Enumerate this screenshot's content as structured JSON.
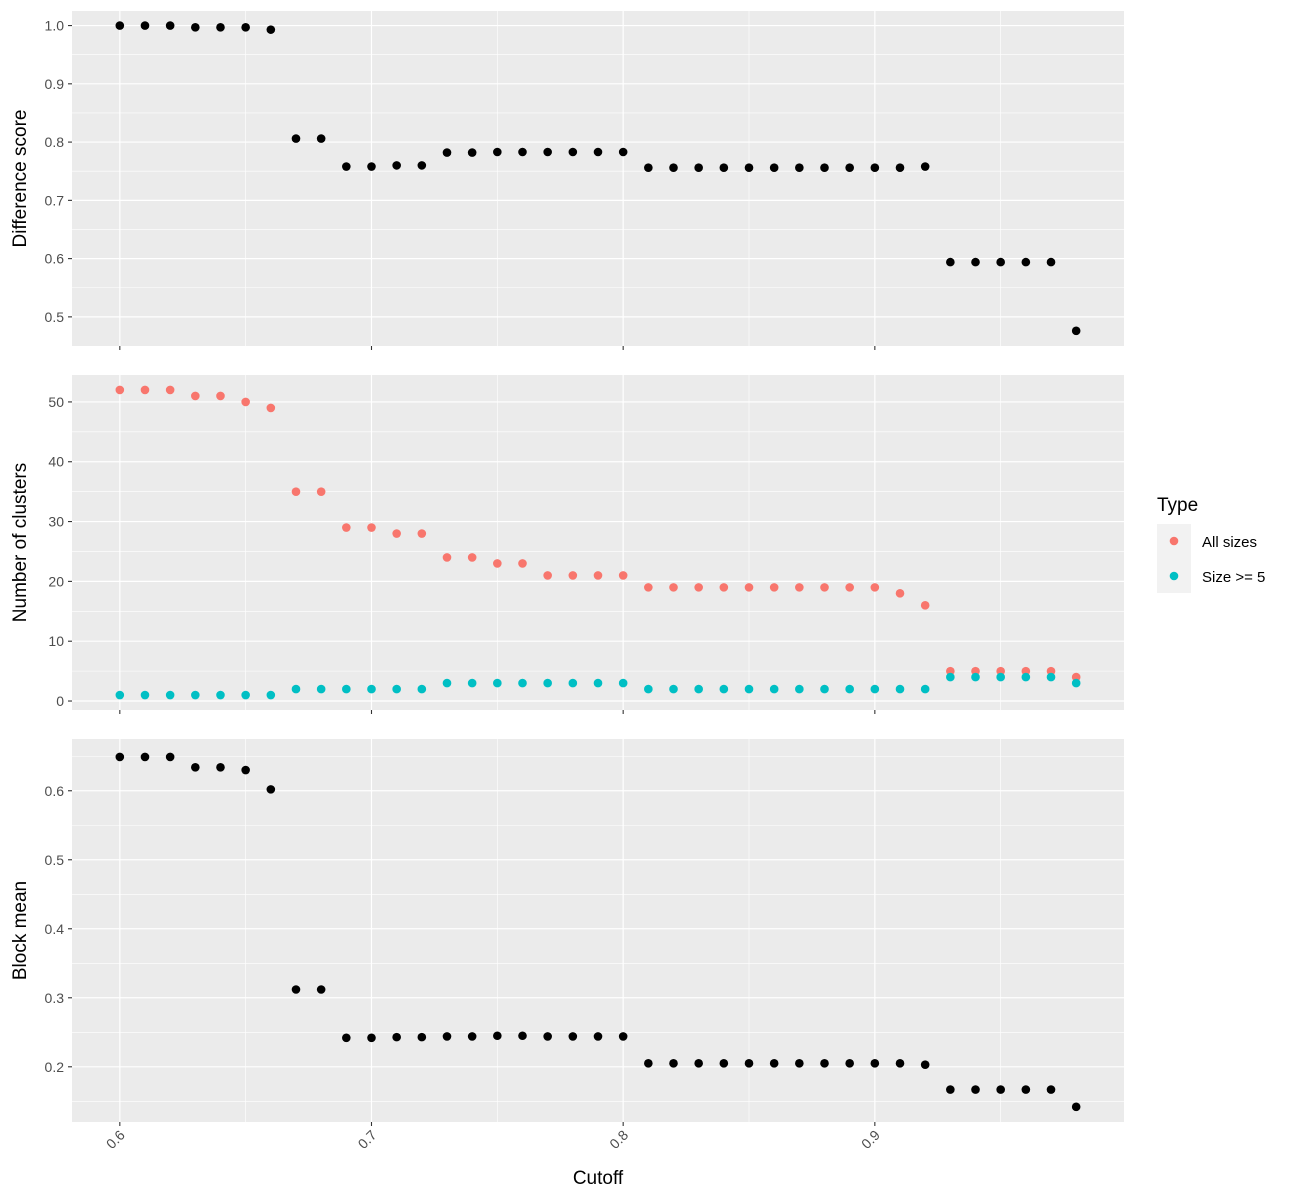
{
  "chart_data": {
    "type": "scatter",
    "xlabel": "Cutoff",
    "x_ticks": [
      "0.6",
      "0.7",
      "0.8",
      "0.9"
    ],
    "xlim": [
      0.581,
      0.999
    ],
    "x": [
      0.6,
      0.61,
      0.62,
      0.63,
      0.64,
      0.65,
      0.66,
      0.67,
      0.68,
      0.69,
      0.7,
      0.71,
      0.72,
      0.73,
      0.74,
      0.75,
      0.76,
      0.77,
      0.78,
      0.79,
      0.8,
      0.81,
      0.82,
      0.83,
      0.84,
      0.85,
      0.86,
      0.87,
      0.88,
      0.89,
      0.9,
      0.91,
      0.92,
      0.93,
      0.94,
      0.95,
      0.96,
      0.97,
      0.98
    ],
    "panels": [
      {
        "ylabel": "Difference score",
        "ylim": [
          0.45,
          1.025
        ],
        "y_ticks": [
          "0.5",
          "0.6",
          "0.7",
          "0.8",
          "0.9",
          "1.0"
        ],
        "series": [
          {
            "color": "#000000",
            "values": [
              1.0,
              1.0,
              1.0,
              0.997,
              0.997,
              0.997,
              0.993,
              0.806,
              0.806,
              0.758,
              0.758,
              0.76,
              0.76,
              0.782,
              0.782,
              0.783,
              0.783,
              0.783,
              0.783,
              0.783,
              0.783,
              0.756,
              0.756,
              0.756,
              0.756,
              0.756,
              0.756,
              0.756,
              0.756,
              0.756,
              0.756,
              0.756,
              0.758,
              0.594,
              0.594,
              0.594,
              0.594,
              0.594,
              0.476
            ]
          }
        ]
      },
      {
        "ylabel": "Number of clusters",
        "ylim": [
          -1.5,
          54.5
        ],
        "y_ticks": [
          "0",
          "10",
          "20",
          "30",
          "40",
          "50"
        ],
        "series": [
          {
            "name": "All sizes",
            "color": "#F8766D",
            "values": [
              52,
              52,
              52,
              51,
              51,
              50,
              49,
              35,
              35,
              29,
              29,
              28,
              28,
              24,
              24,
              23,
              23,
              21,
              21,
              21,
              21,
              19,
              19,
              19,
              19,
              19,
              19,
              19,
              19,
              19,
              19,
              18,
              16,
              5,
              5,
              5,
              5,
              5,
              4
            ]
          },
          {
            "name": "Size >= 5",
            "color": "#00BFC4",
            "values": [
              1,
              1,
              1,
              1,
              1,
              1,
              1,
              2,
              2,
              2,
              2,
              2,
              2,
              3,
              3,
              3,
              3,
              3,
              3,
              3,
              3,
              2,
              2,
              2,
              2,
              2,
              2,
              2,
              2,
              2,
              2,
              2,
              2,
              4,
              4,
              4,
              4,
              4,
              3
            ]
          }
        ]
      },
      {
        "ylabel": "Block mean",
        "ylim": [
          0.12,
          0.675
        ],
        "y_ticks": [
          "0.2",
          "0.3",
          "0.4",
          "0.5",
          "0.6"
        ],
        "series": [
          {
            "color": "#000000",
            "values": [
              0.649,
              0.649,
              0.649,
              0.634,
              0.634,
              0.63,
              0.602,
              0.312,
              0.312,
              0.242,
              0.242,
              0.243,
              0.243,
              0.244,
              0.244,
              0.245,
              0.245,
              0.244,
              0.244,
              0.244,
              0.244,
              0.205,
              0.205,
              0.205,
              0.205,
              0.205,
              0.205,
              0.205,
              0.205,
              0.205,
              0.205,
              0.205,
              0.203,
              0.167,
              0.167,
              0.167,
              0.167,
              0.167,
              0.142
            ]
          }
        ]
      }
    ],
    "legend": {
      "title": "Type",
      "position": "right",
      "entries": [
        {
          "label": "All sizes",
          "color": "#F8766D"
        },
        {
          "label": "Size >= 5",
          "color": "#00BFC4"
        }
      ]
    },
    "grid": true,
    "panel_background": "#EBEBEB",
    "grid_color": "#FFFFFF"
  }
}
